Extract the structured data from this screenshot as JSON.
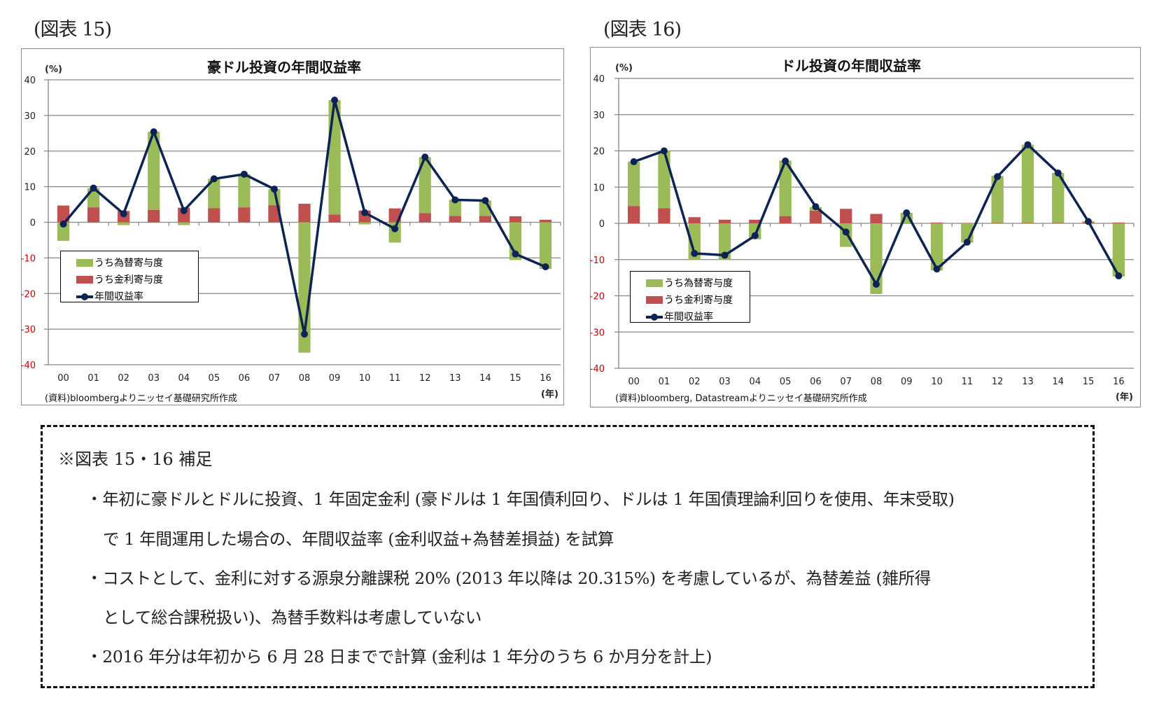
{
  "figures": [
    {
      "label": "(図表 15)",
      "title": "豪ドル投資の年間収益率",
      "unit": "(%)",
      "year_unit": "(年)",
      "source": "(資料)bloombergよりニッセイ基礎研究所作成",
      "legend": [
        "うち為替寄与度",
        "うち金利寄与度",
        "年間収益率"
      ]
    },
    {
      "label": "(図表 16)",
      "title": "ドル投資の年間収益率",
      "unit": "(%)",
      "year_unit": "(年)",
      "source": "(資料)bloomberg, Datastreamよりニッセイ基礎研究所作成",
      "legend": [
        "うち為替寄与度",
        "うち金利寄与度",
        "年間収益率"
      ]
    }
  ],
  "colors": {
    "fx": "#9bbb59",
    "interest": "#c0504d",
    "total": "#0c2355",
    "grid": "#868686",
    "negative_tick": "#d00000",
    "positive_tick": "#222222"
  },
  "chart_data": [
    {
      "type": "bar",
      "title": "豪ドル投資の年間収益率",
      "xlabel": "(年)",
      "ylabel": "(%)",
      "ylim": [
        -40,
        40
      ],
      "yticks": [
        40,
        30,
        20,
        10,
        0,
        -10,
        -20,
        -30,
        -40
      ],
      "grid": true,
      "legend_position": "inside-left",
      "categories": [
        "00",
        "01",
        "02",
        "03",
        "04",
        "05",
        "06",
        "07",
        "08",
        "09",
        "10",
        "11",
        "12",
        "13",
        "14",
        "15",
        "16"
      ],
      "series": [
        {
          "name": "うち為替寄与度",
          "type": "stacked-bar",
          "values": [
            -5.2,
            5.4,
            -0.8,
            21.9,
            -0.8,
            8.2,
            9.3,
            4.5,
            -36.6,
            32.1,
            -0.6,
            -5.7,
            15.7,
            4.5,
            4.3,
            -10.6,
            -13.1
          ]
        },
        {
          "name": "うち金利寄与度",
          "type": "stacked-bar",
          "values": [
            4.7,
            4.2,
            3.2,
            3.5,
            4.1,
            4.0,
            4.2,
            4.8,
            5.2,
            2.2,
            3.3,
            3.9,
            2.6,
            1.8,
            1.8,
            1.7,
            0.7
          ]
        },
        {
          "name": "年間収益率",
          "type": "line",
          "values": [
            -0.5,
            9.6,
            2.4,
            25.4,
            3.3,
            12.2,
            13.5,
            9.3,
            -31.4,
            34.3,
            2.7,
            -1.8,
            18.3,
            6.3,
            6.1,
            -8.9,
            -12.5
          ]
        }
      ]
    },
    {
      "type": "bar",
      "title": "ドル投資の年間収益率",
      "xlabel": "(年)",
      "ylabel": "(%)",
      "ylim": [
        -40,
        40
      ],
      "yticks": [
        40,
        30,
        20,
        10,
        0,
        -10,
        -20,
        -30,
        -40
      ],
      "grid": true,
      "legend_position": "inside-left",
      "categories": [
        "00",
        "01",
        "02",
        "03",
        "04",
        "05",
        "06",
        "07",
        "08",
        "09",
        "10",
        "11",
        "12",
        "13",
        "14",
        "15",
        "16"
      ],
      "series": [
        {
          "name": "うち為替寄与度",
          "type": "stacked-bar",
          "values": [
            12.2,
            15.8,
            -10.0,
            -10.0,
            -4.4,
            15.3,
            1.0,
            -6.5,
            -19.5,
            2.9,
            -13.0,
            -5.3,
            13.0,
            21.6,
            13.8,
            0.4,
            -14.7
          ]
        },
        {
          "name": "うち金利寄与度",
          "type": "stacked-bar",
          "values": [
            4.8,
            4.2,
            1.7,
            1.0,
            1.0,
            2.0,
            3.5,
            4.0,
            2.6,
            0.0,
            0.2,
            0.1,
            0.1,
            0.1,
            0.1,
            0.2,
            0.2
          ]
        },
        {
          "name": "年間収益率",
          "type": "line",
          "values": [
            17.0,
            20.0,
            -8.3,
            -8.8,
            -3.4,
            17.2,
            4.6,
            -2.4,
            -16.8,
            2.9,
            -12.6,
            -5.2,
            12.9,
            21.7,
            13.9,
            0.5,
            -14.5
          ]
        }
      ]
    }
  ],
  "note": {
    "title": "※図表 15・16 補足",
    "lines": [
      "・年初に豪ドルとドルに投資、1 年固定金利 (豪ドルは 1 年国債利回り、ドルは 1 年国債理論利回りを使用、年末受取)",
      "で 1 年間運用した場合の、年間収益率 (金利収益+為替差損益) を試算",
      "・コストとして、金利に対する源泉分離課税 20% (2013 年以降は 20.315%) を考慮しているが、為替差益 (雑所得",
      "として総合課税扱い)、為替手数料は考慮していない",
      "・2016 年分は年初から 6 月 28 日までで計算 (金利は 1 年分のうち 6 か月分を計上)"
    ]
  }
}
